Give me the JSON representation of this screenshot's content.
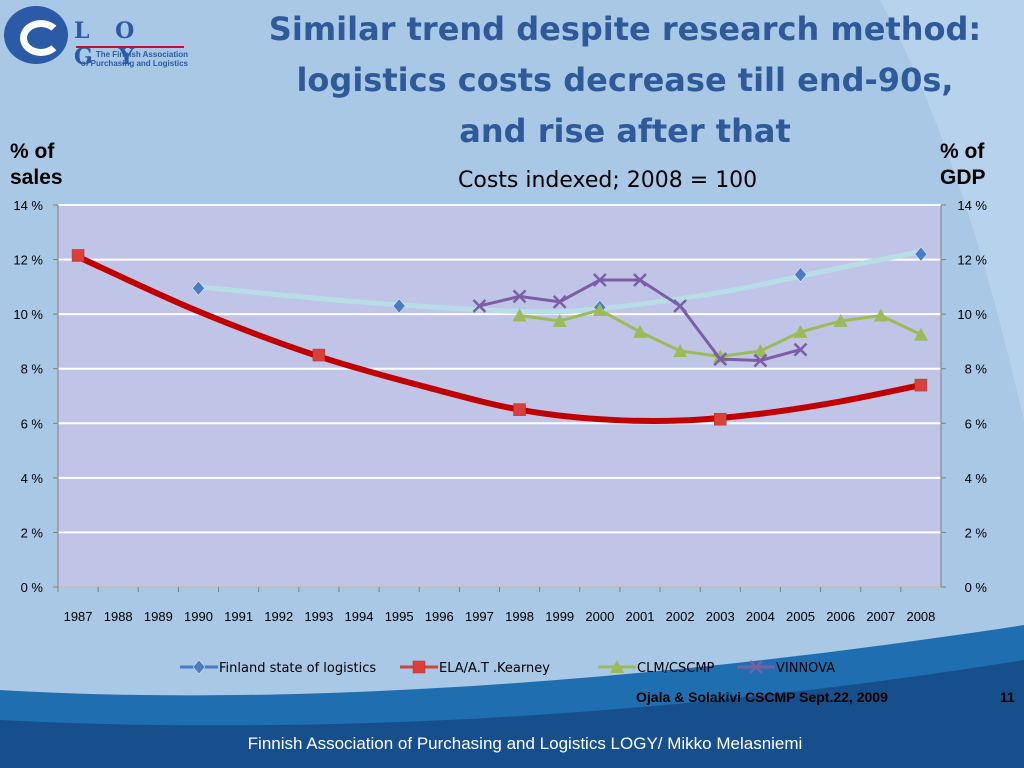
{
  "logo": {
    "word": "L O G Y",
    "subtitle_line1": "The Finnish Association",
    "subtitle_line2": "of Purchasing and Logistics"
  },
  "title": {
    "line1": "Similar trend despite research method:",
    "line2": "logistics costs decrease till end-90s,",
    "line3": "and rise after that"
  },
  "footer": {
    "source": "Ojala & Solakivi CSCMP Sept.22, 2009",
    "slide_number": "11",
    "author": "Finnish Association of Purchasing and Logistics LOGY/ Mikko Melasniemi"
  },
  "colors": {
    "background": "#a9c8e6",
    "plot_area": "#c0c4e6",
    "finland": "#4a7cc1",
    "finland_trend": "#b7dde6",
    "ela": "#d9403a",
    "ela_trend": "#c00000",
    "clm": "#9bbb59",
    "vinnova": "#7b5ea6"
  },
  "chart_data": {
    "type": "line",
    "subtitle": "Costs indexed; 2008 = 100",
    "ylabel_left": "% of sales",
    "ylabel_right": "% of GDP",
    "x": [
      1987,
      1988,
      1989,
      1990,
      1991,
      1992,
      1993,
      1994,
      1995,
      1996,
      1997,
      1998,
      1999,
      2000,
      2001,
      2002,
      2003,
      2004,
      2005,
      2006,
      2007,
      2008
    ],
    "ylim": [
      0,
      14
    ],
    "yticks": [
      "0 %",
      "2 %",
      "4 %",
      "6 %",
      "8 %",
      "10 %",
      "12 %",
      "14 %"
    ],
    "grid": true,
    "legend_position": "bottom",
    "series": [
      {
        "name": "Finland state of logistics",
        "marker": "diamond",
        "points": [
          [
            1990,
            10.95
          ],
          [
            1995,
            10.3
          ],
          [
            2000,
            10.25
          ],
          [
            2005,
            11.45
          ],
          [
            2008,
            12.2
          ]
        ],
        "trend": [
          [
            1990,
            11.0
          ],
          [
            1994,
            10.45
          ],
          [
            1998,
            10.1
          ],
          [
            2000,
            10.2
          ],
          [
            2003,
            10.8
          ],
          [
            2006,
            11.7
          ],
          [
            2008,
            12.3
          ]
        ]
      },
      {
        "name": "ELA/A.T .Kearney",
        "marker": "square",
        "points": [
          [
            1987,
            12.15
          ],
          [
            1993,
            8.5
          ],
          [
            1998,
            6.5
          ],
          [
            2003,
            6.15
          ],
          [
            2008,
            7.4
          ]
        ],
        "trend": [
          [
            1987,
            12.1
          ],
          [
            1990,
            10.1
          ],
          [
            1993,
            8.45
          ],
          [
            1996,
            7.2
          ],
          [
            1998,
            6.5
          ],
          [
            2000,
            6.15
          ],
          [
            2002,
            6.1
          ],
          [
            2004,
            6.35
          ],
          [
            2006,
            6.8
          ],
          [
            2008,
            7.4
          ]
        ]
      },
      {
        "name": "CLM/CSCMP",
        "marker": "triangle",
        "points": [
          [
            1998,
            9.95
          ],
          [
            1999,
            9.75
          ],
          [
            2000,
            10.15
          ],
          [
            2001,
            9.35
          ],
          [
            2002,
            8.65
          ],
          [
            2003,
            8.45
          ],
          [
            2004,
            8.65
          ],
          [
            2005,
            9.35
          ],
          [
            2006,
            9.75
          ],
          [
            2007,
            9.95
          ],
          [
            2008,
            9.25
          ]
        ]
      },
      {
        "name": "VINNOVA",
        "marker": "x",
        "points": [
          [
            1997,
            10.3
          ],
          [
            1998,
            10.65
          ],
          [
            1999,
            10.45
          ],
          [
            2000,
            11.25
          ],
          [
            2001,
            11.25
          ],
          [
            2002,
            10.3
          ],
          [
            2003,
            8.35
          ],
          [
            2004,
            8.3
          ],
          [
            2005,
            8.7
          ]
        ]
      }
    ]
  }
}
